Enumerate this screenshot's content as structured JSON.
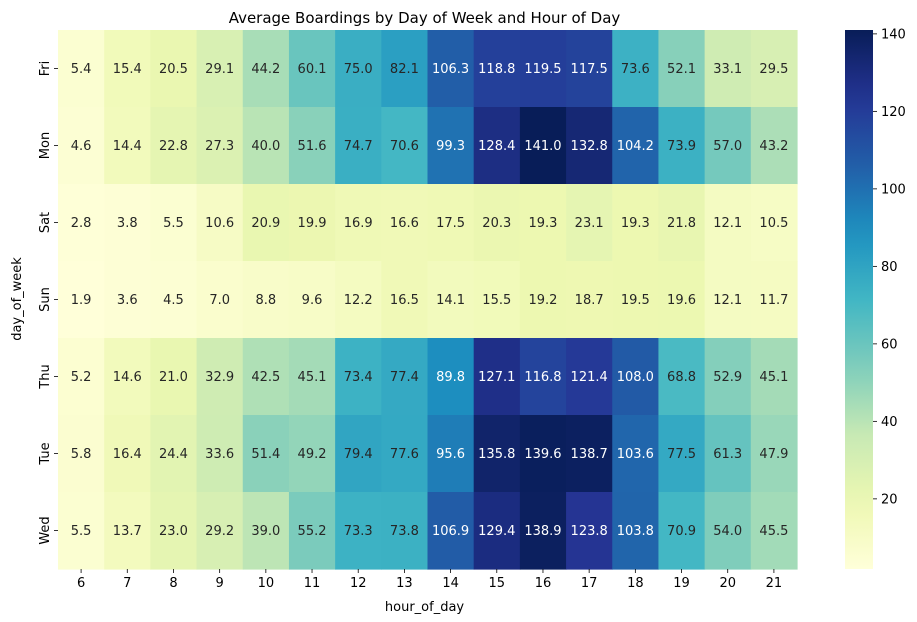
{
  "chart_data": {
    "type": "heatmap",
    "title": "Average Boardings by Day of Week and Hour of Day",
    "xlabel": "hour_of_day",
    "ylabel": "day_of_week",
    "x": [
      "6",
      "7",
      "8",
      "9",
      "10",
      "11",
      "12",
      "13",
      "14",
      "15",
      "16",
      "17",
      "18",
      "19",
      "20",
      "21"
    ],
    "y": [
      "Fri",
      "Mon",
      "Sat",
      "Sun",
      "Thu",
      "Tue",
      "Wed"
    ],
    "values": [
      [
        5.4,
        15.4,
        20.5,
        29.1,
        44.2,
        60.1,
        75.0,
        82.1,
        106.3,
        118.8,
        119.5,
        117.5,
        73.6,
        52.1,
        33.1,
        29.5
      ],
      [
        4.6,
        14.4,
        22.8,
        27.3,
        40.0,
        51.6,
        74.7,
        70.6,
        99.3,
        128.4,
        141.0,
        132.8,
        104.2,
        73.9,
        57.0,
        43.2
      ],
      [
        2.8,
        3.8,
        5.5,
        10.6,
        20.9,
        19.9,
        16.9,
        16.6,
        17.5,
        20.3,
        19.3,
        23.1,
        19.3,
        21.8,
        12.1,
        10.5
      ],
      [
        1.9,
        3.6,
        4.5,
        7.0,
        8.8,
        9.6,
        12.2,
        16.5,
        14.1,
        15.5,
        19.2,
        18.7,
        19.5,
        19.6,
        12.1,
        11.7
      ],
      [
        5.2,
        14.6,
        21.0,
        32.9,
        42.5,
        45.1,
        73.4,
        77.4,
        89.8,
        127.1,
        116.8,
        121.4,
        108.0,
        68.8,
        52.9,
        45.1
      ],
      [
        5.8,
        16.4,
        24.4,
        33.6,
        51.4,
        49.2,
        79.4,
        77.6,
        95.6,
        135.8,
        139.6,
        138.7,
        103.6,
        77.5,
        61.3,
        47.9
      ],
      [
        5.5,
        13.7,
        23.0,
        29.2,
        39.0,
        55.2,
        73.3,
        73.8,
        106.9,
        129.4,
        138.9,
        123.8,
        103.8,
        70.9,
        54.0,
        45.5
      ]
    ],
    "colorbar": {
      "ticks": [
        "20",
        "40",
        "60",
        "80",
        "100",
        "120",
        "140"
      ],
      "tick_values": [
        20,
        40,
        60,
        80,
        100,
        120,
        140
      ],
      "range": [
        1.9,
        141.0
      ]
    },
    "colormap": "YlGnBu",
    "text_color_dark": "#262626",
    "text_color_light": "#ffffff"
  }
}
